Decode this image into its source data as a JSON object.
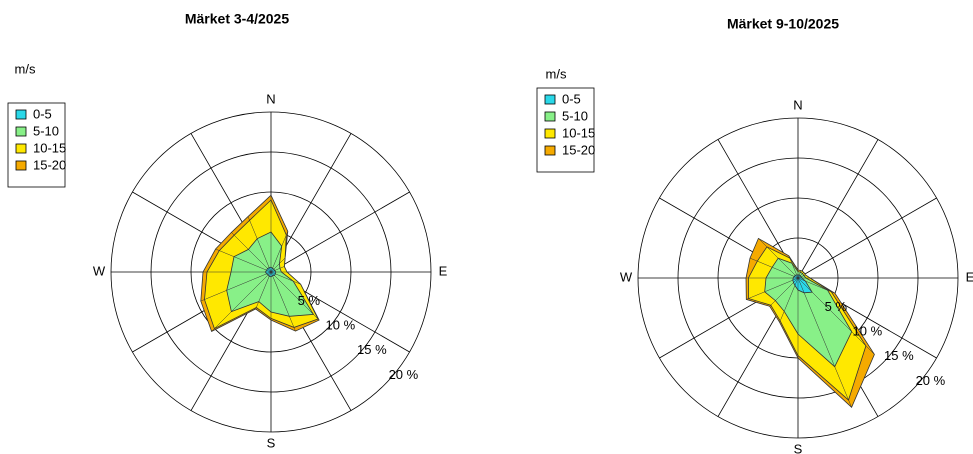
{
  "chart_data": [
    {
      "type": "windrose",
      "title": "Märket 3-4/2025",
      "legend_title": "m/s",
      "categories": [
        "N",
        null,
        null,
        null,
        "E",
        null,
        null,
        null,
        "S",
        null,
        null,
        null,
        "W",
        null,
        null,
        null
      ],
      "rlim": [
        0,
        20
      ],
      "rticks": [
        {
          "value": 5,
          "label": "5 %"
        },
        {
          "value": 10,
          "label": "10 %"
        },
        {
          "value": 15,
          "label": "15 %"
        },
        {
          "value": 20,
          "label": "20 %"
        }
      ],
      "series": [
        {
          "name": "0-5",
          "color": "#2ad8e8",
          "values": [
            0.6,
            0.5,
            0.5,
            0.5,
            0.6,
            0.6,
            0.6,
            0.5,
            0.6,
            0.6,
            0.5,
            0.6,
            0.7,
            0.6,
            0.6,
            0.6
          ]
        },
        {
          "name": "5-10",
          "color": "#88f088",
          "values": [
            4.4,
            3,
            1,
            0.7,
            0.7,
            2.4,
            6.9,
            5.5,
            4.4,
            3.4,
            6.5,
            5.4,
            4.3,
            4.4,
            3.4,
            3.9
          ]
        },
        {
          "name": "10-15",
          "color": "#ffe800",
          "values": [
            4,
            1.5,
            1,
            0.6,
            0.7,
            1,
            0.8,
            1.5,
            0.8,
            0.8,
            3,
            3,
            3,
            2,
            2.5,
            2.5
          ]
        },
        {
          "name": "15-20",
          "color": "#f5aa00",
          "values": [
            0.6,
            0.5,
            0,
            0,
            0,
            0,
            0.2,
            0.5,
            0.2,
            0.2,
            0.5,
            0.5,
            0.5,
            0.5,
            0.5,
            0.5
          ]
        }
      ]
    },
    {
      "type": "windrose",
      "title": "Märket 9-10/2025",
      "legend_title": "m/s",
      "categories": [
        "N",
        null,
        null,
        null,
        "E",
        null,
        null,
        null,
        "S",
        null,
        null,
        null,
        "W",
        null,
        null,
        null
      ],
      "rlim": [
        0,
        20
      ],
      "rticks": [
        {
          "value": 5,
          "label": "5 %"
        },
        {
          "value": 10,
          "label": "10 %"
        },
        {
          "value": 15,
          "label": "15 %"
        },
        {
          "value": 20,
          "label": "20 %"
        }
      ],
      "series": [
        {
          "name": "0-5",
          "color": "#2ad8e8",
          "values": [
            0.4,
            0.4,
            0.4,
            0.4,
            0.5,
            1,
            2.5,
            2,
            1.5,
            1,
            0.8,
            0.7,
            0.6,
            0.5,
            0.5,
            0.4
          ]
        },
        {
          "name": "5-10",
          "color": "#88f088",
          "values": [
            0.4,
            0.4,
            0.4,
            0.4,
            0.5,
            3,
            7,
            10,
            5.5,
            3.5,
            3.2,
            3.8,
            3.4,
            3,
            3,
            1.6
          ]
        },
        {
          "name": "10-15",
          "color": "#ffe800",
          "values": [
            0.2,
            0.2,
            0.2,
            0.2,
            0.5,
            0.5,
            2.5,
            4.5,
            2.7,
            1.3,
            0.8,
            2.2,
            2.2,
            2,
            2,
            0.7
          ]
        },
        {
          "name": "15-20",
          "color": "#f5aa00",
          "values": [
            0,
            0,
            0,
            0,
            0,
            0.5,
            1.5,
            1,
            0.3,
            0.2,
            0.2,
            0.3,
            0.3,
            1,
            1.5,
            0.3
          ]
        }
      ]
    }
  ]
}
